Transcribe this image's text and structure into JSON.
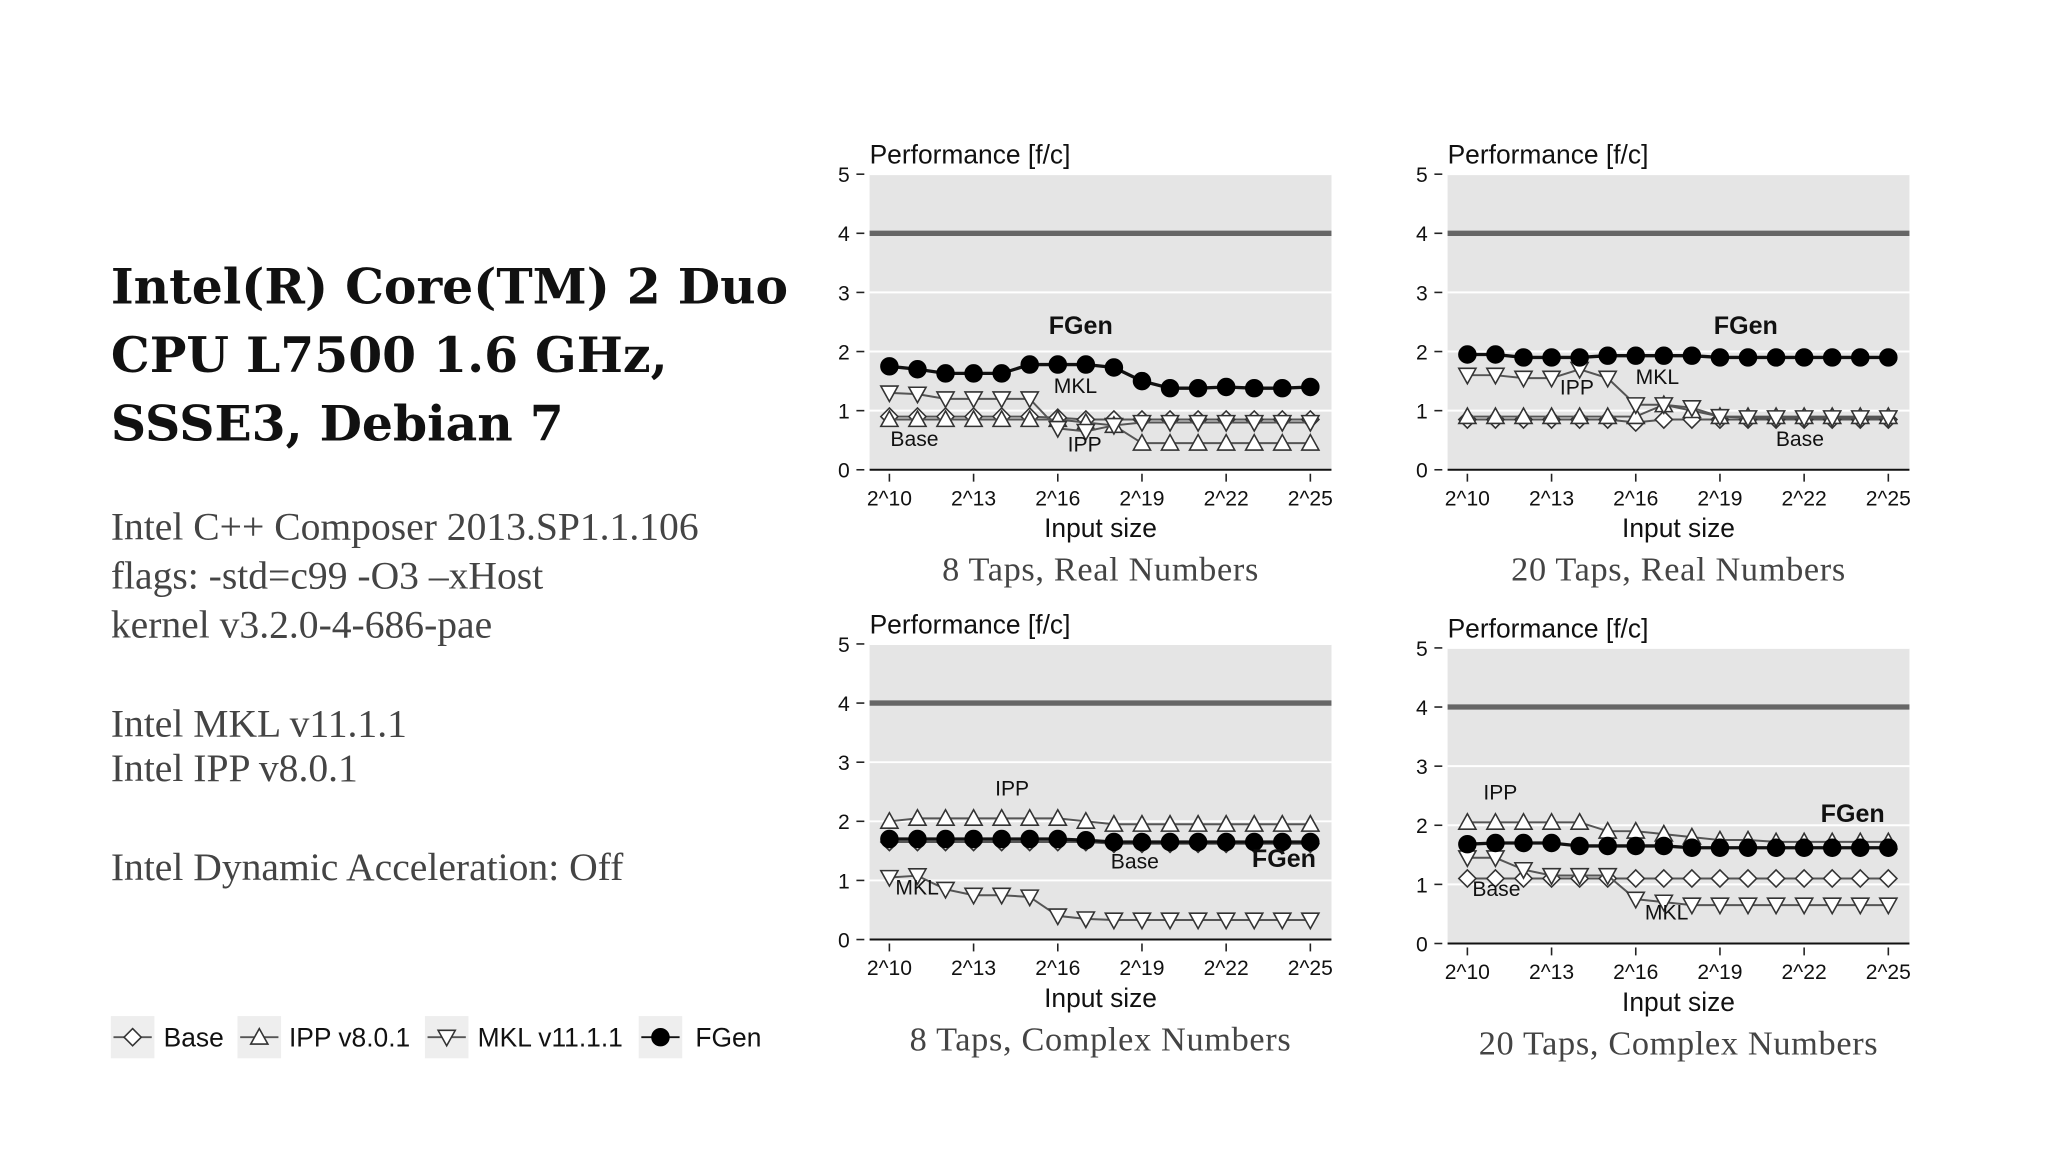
{
  "slide": {
    "title_lines": [
      "Intel(R) Core(TM) 2 Duo",
      "CPU L7500 1.6 GHz,",
      "SSSE3, Debian 7"
    ],
    "notes": [
      [
        "Intel C++ Composer 2013.SP1.1.106",
        "flags: -std=c99 -O3 –xHost",
        "kernel v3.2.0-4-686-pae"
      ],
      [
        "Intel MKL v11.1.1",
        "Intel IPP v8.0.1"
      ],
      [
        "Intel Dynamic Acceleration: Off"
      ]
    ]
  },
  "legend": [
    "Base",
    "IPP v8.0.1",
    "MKL v11.1.1",
    "FGen"
  ],
  "chart_data": [
    {
      "type": "line",
      "ylabel": "Performance [f/c]",
      "xlabel": "Input size",
      "caption": "8 Taps, Real Numbers",
      "categories": [
        "2^10",
        null,
        null,
        "2^13",
        null,
        null,
        "2^16",
        null,
        null,
        "2^19",
        null,
        null,
        "2^22",
        null,
        null,
        "2^25"
      ],
      "ylim": [
        0,
        5
      ],
      "yticks": [
        0,
        1,
        2,
        3,
        4,
        5
      ],
      "grid": true,
      "peak": 4,
      "peak_color": "#666666",
      "annotations": [
        "FGen",
        "MKL",
        "Base",
        "IPP"
      ],
      "series": [
        {
          "marker": "diamond",
          "color": "#333333",
          "values": [
            0.9,
            0.9,
            0.9,
            0.9,
            0.9,
            0.9,
            0.88,
            0.85,
            0.85,
            0.85,
            0.85,
            0.85,
            0.85,
            0.85,
            0.85,
            0.85
          ]
        },
        {
          "marker": "triangle-up",
          "color": "#333333",
          "values": [
            0.85,
            0.85,
            0.85,
            0.85,
            0.85,
            0.85,
            0.85,
            0.8,
            0.75,
            0.45,
            0.45,
            0.45,
            0.45,
            0.45,
            0.45,
            0.45
          ]
        },
        {
          "marker": "triangle-down",
          "color": "#333333",
          "values": [
            1.3,
            1.28,
            1.2,
            1.2,
            1.2,
            1.2,
            0.7,
            0.65,
            0.75,
            0.8,
            0.8,
            0.8,
            0.8,
            0.8,
            0.8,
            0.8
          ]
        },
        {
          "marker": "circle",
          "color": "#000000",
          "values": [
            1.75,
            1.7,
            1.63,
            1.63,
            1.63,
            1.78,
            1.78,
            1.78,
            1.73,
            1.5,
            1.38,
            1.38,
            1.4,
            1.38,
            1.38,
            1.4
          ]
        }
      ]
    },
    {
      "type": "line",
      "ylabel": "Performance [f/c]",
      "xlabel": "Input size",
      "caption": "20 Taps, Real Numbers",
      "categories": [
        "2^10",
        null,
        null,
        "2^13",
        null,
        null,
        "2^16",
        null,
        null,
        "2^19",
        null,
        null,
        "2^22",
        null,
        null,
        "2^25"
      ],
      "ylim": [
        0,
        5
      ],
      "yticks": [
        0,
        1,
        2,
        3,
        4,
        5
      ],
      "grid": true,
      "peak": 4,
      "peak_color": "#666666",
      "annotations": [
        "FGen",
        "IPP",
        "MKL",
        "Base"
      ],
      "series": [
        {
          "marker": "diamond",
          "color": "#333333",
          "values": [
            0.85,
            0.85,
            0.85,
            0.85,
            0.85,
            0.85,
            0.8,
            0.85,
            0.85,
            0.85,
            0.85,
            0.85,
            0.85,
            0.85,
            0.85,
            0.85
          ]
        },
        {
          "marker": "triangle-up",
          "color": "#333333",
          "values": [
            0.9,
            0.9,
            0.9,
            0.9,
            0.9,
            0.9,
            0.9,
            1.1,
            1.0,
            0.9,
            0.9,
            0.9,
            0.9,
            0.9,
            0.9,
            0.9
          ]
        },
        {
          "marker": "triangle-down",
          "color": "#333333",
          "values": [
            1.6,
            1.6,
            1.55,
            1.55,
            1.7,
            1.55,
            1.1,
            1.1,
            1.05,
            0.9,
            0.88,
            0.88,
            0.88,
            0.88,
            0.88,
            0.88
          ]
        },
        {
          "marker": "circle",
          "color": "#000000",
          "values": [
            1.95,
            1.95,
            1.9,
            1.9,
            1.9,
            1.93,
            1.93,
            1.93,
            1.93,
            1.9,
            1.9,
            1.9,
            1.9,
            1.9,
            1.9,
            1.9
          ]
        }
      ]
    },
    {
      "type": "line",
      "ylabel": "Performance [f/c]",
      "xlabel": "Input size",
      "caption": "8 Taps, Complex Numbers",
      "categories": [
        "2^10",
        null,
        null,
        "2^13",
        null,
        null,
        "2^16",
        null,
        null,
        "2^19",
        null,
        null,
        "2^22",
        null,
        null,
        "2^25"
      ],
      "ylim": [
        0,
        5
      ],
      "yticks": [
        0,
        1,
        2,
        3,
        4,
        5
      ],
      "grid": true,
      "peak": 4,
      "peak_color": "#666666",
      "annotations": [
        "IPP",
        "Base",
        "FGen",
        "MKL"
      ],
      "series": [
        {
          "marker": "diamond",
          "color": "#333333",
          "values": [
            1.65,
            1.65,
            1.65,
            1.65,
            1.65,
            1.65,
            1.65,
            1.65,
            1.62,
            1.62,
            1.62,
            1.62,
            1.62,
            1.62,
            1.62,
            1.62
          ]
        },
        {
          "marker": "triangle-up",
          "color": "#333333",
          "values": [
            2.0,
            2.05,
            2.05,
            2.05,
            2.05,
            2.05,
            2.05,
            2.0,
            1.95,
            1.95,
            1.95,
            1.95,
            1.95,
            1.95,
            1.95,
            1.95
          ]
        },
        {
          "marker": "triangle-down",
          "color": "#333333",
          "values": [
            1.05,
            1.08,
            0.85,
            0.75,
            0.75,
            0.72,
            0.4,
            0.35,
            0.33,
            0.33,
            0.33,
            0.33,
            0.33,
            0.33,
            0.33,
            0.33
          ]
        },
        {
          "marker": "circle",
          "color": "#000000",
          "values": [
            1.7,
            1.7,
            1.7,
            1.7,
            1.7,
            1.7,
            1.7,
            1.68,
            1.65,
            1.65,
            1.65,
            1.65,
            1.65,
            1.65,
            1.65,
            1.65
          ]
        }
      ]
    },
    {
      "type": "line",
      "ylabel": "Performance [f/c]",
      "xlabel": "Input size",
      "caption": "20 Taps, Complex Numbers",
      "categories": [
        "2^10",
        null,
        null,
        "2^13",
        null,
        null,
        "2^16",
        null,
        null,
        "2^19",
        null,
        null,
        "2^22",
        null,
        null,
        "2^25"
      ],
      "ylim": [
        0,
        5
      ],
      "yticks": [
        0,
        1,
        2,
        3,
        4,
        5
      ],
      "grid": true,
      "peak": 4,
      "peak_color": "#666666",
      "annotations": [
        "IPP",
        "FGen",
        "Base",
        "MKL"
      ],
      "series": [
        {
          "marker": "diamond",
          "color": "#333333",
          "values": [
            1.1,
            1.1,
            1.1,
            1.1,
            1.1,
            1.1,
            1.1,
            1.1,
            1.1,
            1.1,
            1.1,
            1.1,
            1.1,
            1.1,
            1.1,
            1.1
          ]
        },
        {
          "marker": "triangle-up",
          "color": "#333333",
          "values": [
            2.05,
            2.05,
            2.05,
            2.05,
            2.05,
            1.9,
            1.9,
            1.85,
            1.8,
            1.75,
            1.75,
            1.72,
            1.72,
            1.72,
            1.72,
            1.72
          ]
        },
        {
          "marker": "triangle-down",
          "color": "#333333",
          "values": [
            1.45,
            1.45,
            1.25,
            1.15,
            1.15,
            1.15,
            0.75,
            0.7,
            0.65,
            0.65,
            0.65,
            0.65,
            0.65,
            0.65,
            0.65,
            0.65
          ]
        },
        {
          "marker": "circle",
          "color": "#000000",
          "values": [
            1.68,
            1.7,
            1.7,
            1.7,
            1.65,
            1.65,
            1.65,
            1.65,
            1.62,
            1.62,
            1.62,
            1.62,
            1.62,
            1.62,
            1.62,
            1.62
          ]
        }
      ]
    }
  ]
}
